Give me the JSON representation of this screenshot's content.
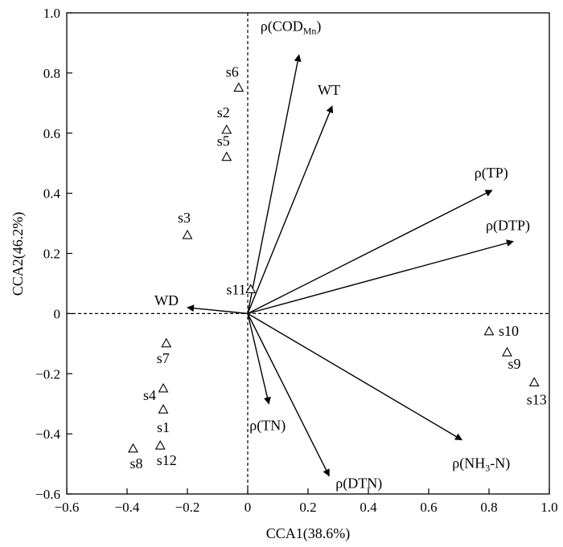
{
  "chart_data": {
    "type": "scatter",
    "xlabel": "CCA1(38.6%)",
    "ylabel": "CCA2(46.2%)",
    "xlim": [
      -0.6,
      1.0
    ],
    "ylim": [
      -0.6,
      1.0
    ],
    "x_ticks": [
      "−0.6",
      "−0.4",
      "−0.2",
      "0",
      "0.2",
      "0.4",
      "0.6",
      "0.8",
      "1.0"
    ],
    "x_tick_values": [
      -0.6,
      -0.4,
      -0.2,
      0,
      0.2,
      0.4,
      0.6,
      0.8,
      1.0
    ],
    "y_ticks": [
      "−0.6",
      "−0.4",
      "−0.2",
      "0",
      "0.2",
      "0.4",
      "0.6",
      "0.8",
      "1.0"
    ],
    "y_tick_values": [
      -0.6,
      -0.4,
      -0.2,
      0,
      0.2,
      0.4,
      0.6,
      0.8,
      1.0
    ],
    "reference_lines": {
      "x": 0,
      "y": 0,
      "style": "dashed"
    },
    "marker": "open-triangle",
    "sites": [
      {
        "label": "s1",
        "x": -0.28,
        "y": -0.32
      },
      {
        "label": "s2",
        "x": -0.07,
        "y": 0.61
      },
      {
        "label": "s3",
        "x": -0.2,
        "y": 0.26
      },
      {
        "label": "s4",
        "x": -0.28,
        "y": -0.25
      },
      {
        "label": "s5",
        "x": -0.07,
        "y": 0.52
      },
      {
        "label": "s6",
        "x": -0.03,
        "y": 0.75
      },
      {
        "label": "s7",
        "x": -0.27,
        "y": -0.1
      },
      {
        "label": "s8",
        "x": -0.38,
        "y": -0.45
      },
      {
        "label": "s9",
        "x": 0.86,
        "y": -0.13
      },
      {
        "label": "s10",
        "x": 0.8,
        "y": -0.06
      },
      {
        "label": "s11",
        "x": 0.01,
        "y": 0.08
      },
      {
        "label": "s12",
        "x": -0.29,
        "y": -0.44
      },
      {
        "label": "s13",
        "x": 0.95,
        "y": -0.23
      }
    ],
    "vectors": [
      {
        "label": "ρ(COD",
        "sub": "Mn",
        "suffix": ")",
        "x": 0.17,
        "y": 0.86
      },
      {
        "label": "WT",
        "x": 0.28,
        "y": 0.69
      },
      {
        "label": "ρ(TP)",
        "x": 0.81,
        "y": 0.41
      },
      {
        "label": "ρ(DTP)",
        "x": 0.88,
        "y": 0.24
      },
      {
        "label": "WD",
        "x": -0.2,
        "y": 0.02
      },
      {
        "label": "ρ(TN)",
        "x": 0.07,
        "y": -0.3
      },
      {
        "label": "ρ(DTN)",
        "x": 0.27,
        "y": -0.54
      },
      {
        "label": "ρ(NH",
        "sub": "3",
        "suffix": "-N)",
        "x": 0.71,
        "y": -0.42
      }
    ]
  }
}
